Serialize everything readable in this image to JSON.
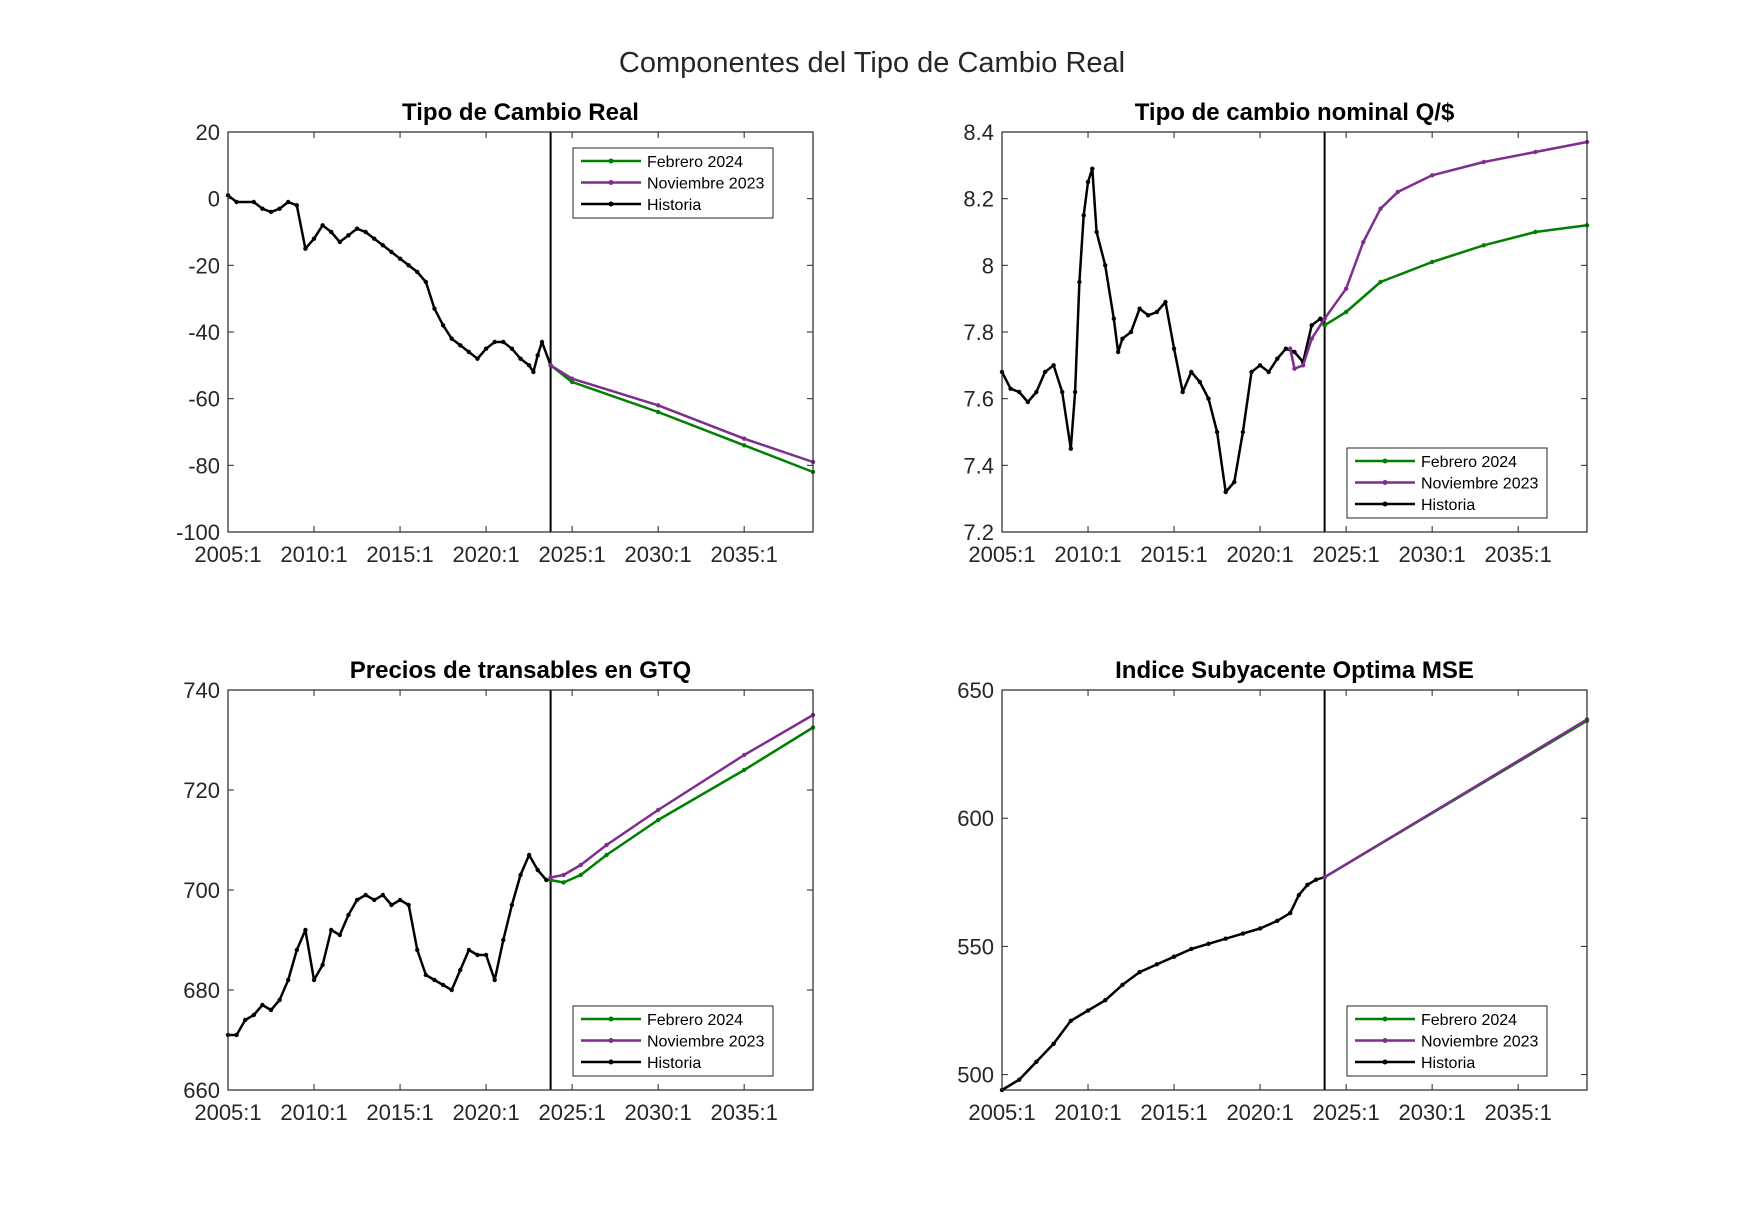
{
  "figure": {
    "title": "Componentes del Tipo de Cambio Real"
  },
  "colors": {
    "Febrero 2024": "#008000",
    "Noviembre 2023": "#7E2F8E",
    "Historia": "#000000",
    "axis": "#262626",
    "vline": "#000000"
  },
  "chart_data": [
    {
      "type": "line",
      "title": "Tipo de Cambio Real",
      "x_unit": "year (quarterly, 2005:1 = 2005.0)",
      "xlim": [
        2005.0,
        2039.0
      ],
      "ylim": [
        -100,
        20
      ],
      "xticks": [
        2005,
        2010,
        2015,
        2020,
        2025,
        2030,
        2035
      ],
      "xtick_labels": [
        "2005:1",
        "2010:1",
        "2015:1",
        "2020:1",
        "2025:1",
        "2030:1",
        "2035:1"
      ],
      "yticks": [
        -100,
        -80,
        -60,
        -40,
        -20,
        0,
        20
      ],
      "ytick_labels": [
        "-100",
        "-80",
        "-60",
        "-40",
        "-20",
        "0",
        "20"
      ],
      "forecast_line_x": 2023.75,
      "legend_position": "top-right",
      "series": [
        {
          "name": "Febrero 2024",
          "points": [
            [
              2023.75,
              -50
            ],
            [
              2025,
              -55
            ],
            [
              2030,
              -64
            ],
            [
              2035,
              -74
            ],
            [
              2039,
              -82
            ]
          ]
        },
        {
          "name": "Noviembre 2023",
          "points": [
            [
              2023.75,
              -50
            ],
            [
              2025,
              -54
            ],
            [
              2030,
              -62
            ],
            [
              2035,
              -72
            ],
            [
              2039,
              -79
            ]
          ]
        },
        {
          "name": "Historia",
          "points": [
            [
              2005.0,
              1
            ],
            [
              2005.5,
              -1
            ],
            [
              2006.5,
              -1
            ],
            [
              2007.0,
              -3
            ],
            [
              2007.5,
              -4
            ],
            [
              2008.0,
              -3
            ],
            [
              2008.5,
              -1
            ],
            [
              2009.0,
              -2
            ],
            [
              2009.5,
              -15
            ],
            [
              2010.0,
              -12
            ],
            [
              2010.5,
              -8
            ],
            [
              2011.0,
              -10
            ],
            [
              2011.5,
              -13
            ],
            [
              2012.0,
              -11
            ],
            [
              2012.5,
              -9
            ],
            [
              2013.0,
              -10
            ],
            [
              2013.5,
              -12
            ],
            [
              2014.0,
              -14
            ],
            [
              2014.5,
              -16
            ],
            [
              2015.0,
              -18
            ],
            [
              2015.5,
              -20
            ],
            [
              2016.0,
              -22
            ],
            [
              2016.5,
              -25
            ],
            [
              2017.0,
              -33
            ],
            [
              2017.5,
              -38
            ],
            [
              2018.0,
              -42
            ],
            [
              2018.5,
              -44
            ],
            [
              2019.0,
              -46
            ],
            [
              2019.5,
              -48
            ],
            [
              2020.0,
              -45
            ],
            [
              2020.5,
              -43
            ],
            [
              2021.0,
              -43
            ],
            [
              2021.5,
              -45
            ],
            [
              2022.0,
              -48
            ],
            [
              2022.5,
              -50
            ],
            [
              2022.75,
              -52
            ],
            [
              2023.0,
              -47
            ],
            [
              2023.25,
              -43
            ],
            [
              2023.75,
              -50
            ]
          ]
        }
      ]
    },
    {
      "type": "line",
      "title": "Tipo de cambio nominal Q/$",
      "x_unit": "year (quarterly, 2005:1 = 2005.0)",
      "xlim": [
        2005.0,
        2039.0
      ],
      "ylim": [
        7.2,
        8.4
      ],
      "xticks": [
        2005,
        2010,
        2015,
        2020,
        2025,
        2030,
        2035
      ],
      "xtick_labels": [
        "2005:1",
        "2010:1",
        "2015:1",
        "2020:1",
        "2025:1",
        "2030:1",
        "2035:1"
      ],
      "yticks": [
        7.2,
        7.4,
        7.6,
        7.8,
        8.0,
        8.2,
        8.4
      ],
      "ytick_labels": [
        "7.2",
        "7.4",
        "7.6",
        "7.8",
        "8",
        "8.2",
        "8.4"
      ],
      "forecast_line_x": 2023.75,
      "legend_position": "bottom-right",
      "series": [
        {
          "name": "Febrero 2024",
          "points": [
            [
              2023.75,
              7.82
            ],
            [
              2025,
              7.86
            ],
            [
              2027,
              7.95
            ],
            [
              2030,
              8.01
            ],
            [
              2033,
              8.06
            ],
            [
              2036,
              8.1
            ],
            [
              2039,
              8.12
            ]
          ]
        },
        {
          "name": "Noviembre 2023",
          "points": [
            [
              2021.75,
              7.75
            ],
            [
              2022.0,
              7.69
            ],
            [
              2022.5,
              7.7
            ],
            [
              2023.0,
              7.78
            ],
            [
              2023.75,
              7.84
            ],
            [
              2025,
              7.93
            ],
            [
              2026,
              8.07
            ],
            [
              2027,
              8.17
            ],
            [
              2028,
              8.22
            ],
            [
              2030,
              8.27
            ],
            [
              2033,
              8.31
            ],
            [
              2036,
              8.34
            ],
            [
              2039,
              8.37
            ]
          ]
        },
        {
          "name": "Historia",
          "points": [
            [
              2005.0,
              7.68
            ],
            [
              2005.5,
              7.63
            ],
            [
              2006.0,
              7.62
            ],
            [
              2006.5,
              7.59
            ],
            [
              2007.0,
              7.62
            ],
            [
              2007.5,
              7.68
            ],
            [
              2008.0,
              7.7
            ],
            [
              2008.5,
              7.62
            ],
            [
              2009.0,
              7.45
            ],
            [
              2009.25,
              7.62
            ],
            [
              2009.5,
              7.95
            ],
            [
              2009.75,
              8.15
            ],
            [
              2010.0,
              8.25
            ],
            [
              2010.25,
              8.29
            ],
            [
              2010.5,
              8.1
            ],
            [
              2011.0,
              8.0
            ],
            [
              2011.5,
              7.84
            ],
            [
              2011.75,
              7.74
            ],
            [
              2012.0,
              7.78
            ],
            [
              2012.5,
              7.8
            ],
            [
              2013.0,
              7.87
            ],
            [
              2013.5,
              7.85
            ],
            [
              2014.0,
              7.86
            ],
            [
              2014.5,
              7.89
            ],
            [
              2015.0,
              7.75
            ],
            [
              2015.5,
              7.62
            ],
            [
              2016.0,
              7.68
            ],
            [
              2016.5,
              7.65
            ],
            [
              2017.0,
              7.6
            ],
            [
              2017.5,
              7.5
            ],
            [
              2018.0,
              7.32
            ],
            [
              2018.5,
              7.35
            ],
            [
              2019.0,
              7.5
            ],
            [
              2019.5,
              7.68
            ],
            [
              2020.0,
              7.7
            ],
            [
              2020.5,
              7.68
            ],
            [
              2021.0,
              7.72
            ],
            [
              2021.5,
              7.75
            ],
            [
              2022.0,
              7.74
            ],
            [
              2022.5,
              7.71
            ],
            [
              2023.0,
              7.82
            ],
            [
              2023.5,
              7.84
            ],
            [
              2023.75,
              7.82
            ]
          ]
        }
      ]
    },
    {
      "type": "line",
      "title": "Precios de transables en GTQ",
      "x_unit": "year (quarterly, 2005:1 = 2005.0)",
      "xlim": [
        2005.0,
        2039.0
      ],
      "ylim": [
        660,
        740
      ],
      "xticks": [
        2005,
        2010,
        2015,
        2020,
        2025,
        2030,
        2035
      ],
      "xtick_labels": [
        "2005:1",
        "2010:1",
        "2015:1",
        "2020:1",
        "2025:1",
        "2030:1",
        "2035:1"
      ],
      "yticks": [
        660,
        680,
        700,
        720,
        740
      ],
      "ytick_labels": [
        "660",
        "680",
        "700",
        "720",
        "740"
      ],
      "forecast_line_x": 2023.75,
      "legend_position": "bottom-right",
      "series": [
        {
          "name": "Febrero 2024",
          "points": [
            [
              2023.75,
              702
            ],
            [
              2024.5,
              701.5
            ],
            [
              2025.5,
              703
            ],
            [
              2027,
              707
            ],
            [
              2030,
              714
            ],
            [
              2035,
              724
            ],
            [
              2039,
              732.5
            ]
          ]
        },
        {
          "name": "Noviembre 2023",
          "points": [
            [
              2023.75,
              702.5
            ],
            [
              2024.5,
              703
            ],
            [
              2025.5,
              705
            ],
            [
              2027,
              709
            ],
            [
              2030,
              716
            ],
            [
              2035,
              727
            ],
            [
              2039,
              735
            ]
          ]
        },
        {
          "name": "Historia",
          "points": [
            [
              2005.0,
              671
            ],
            [
              2005.5,
              671
            ],
            [
              2006.0,
              674
            ],
            [
              2006.5,
              675
            ],
            [
              2007.0,
              677
            ],
            [
              2007.5,
              676
            ],
            [
              2008.0,
              678
            ],
            [
              2008.5,
              682
            ],
            [
              2009.0,
              688
            ],
            [
              2009.5,
              692
            ],
            [
              2010.0,
              682
            ],
            [
              2010.5,
              685
            ],
            [
              2011.0,
              692
            ],
            [
              2011.5,
              691
            ],
            [
              2012.0,
              695
            ],
            [
              2012.5,
              698
            ],
            [
              2013.0,
              699
            ],
            [
              2013.5,
              698
            ],
            [
              2014.0,
              699
            ],
            [
              2014.5,
              697
            ],
            [
              2015.0,
              698
            ],
            [
              2015.5,
              697
            ],
            [
              2016.0,
              688
            ],
            [
              2016.5,
              683
            ],
            [
              2017.0,
              682
            ],
            [
              2017.5,
              681
            ],
            [
              2018.0,
              680
            ],
            [
              2018.5,
              684
            ],
            [
              2019.0,
              688
            ],
            [
              2019.5,
              687
            ],
            [
              2020.0,
              687
            ],
            [
              2020.5,
              682
            ],
            [
              2021.0,
              690
            ],
            [
              2021.5,
              697
            ],
            [
              2022.0,
              703
            ],
            [
              2022.5,
              707
            ],
            [
              2023.0,
              704
            ],
            [
              2023.5,
              702
            ],
            [
              2023.75,
              702
            ]
          ]
        }
      ]
    },
    {
      "type": "line",
      "title": "Indice Subyacente Optima MSE",
      "x_unit": "year (quarterly, 2005:1 = 2005.0)",
      "xlim": [
        2005.0,
        2039.0
      ],
      "ylim": [
        494,
        650
      ],
      "xticks": [
        2005,
        2010,
        2015,
        2020,
        2025,
        2030,
        2035
      ],
      "xtick_labels": [
        "2005:1",
        "2010:1",
        "2015:1",
        "2020:1",
        "2025:1",
        "2030:1",
        "2035:1"
      ],
      "yticks": [
        500,
        550,
        600,
        650
      ],
      "ytick_labels": [
        "500",
        "550",
        "600",
        "650"
      ],
      "forecast_line_x": 2023.75,
      "legend_position": "bottom-right",
      "series": [
        {
          "name": "Febrero 2024",
          "points": [
            [
              2023.75,
              577
            ],
            [
              2039,
              638
            ]
          ]
        },
        {
          "name": "Noviembre 2023",
          "points": [
            [
              2023.75,
              577
            ],
            [
              2039,
              638.5
            ]
          ]
        },
        {
          "name": "Historia",
          "points": [
            [
              2005.0,
              494
            ],
            [
              2006.0,
              498
            ],
            [
              2007.0,
              505
            ],
            [
              2008.0,
              512
            ],
            [
              2009.0,
              521
            ],
            [
              2010.0,
              525
            ],
            [
              2011.0,
              529
            ],
            [
              2012.0,
              535
            ],
            [
              2013.0,
              540
            ],
            [
              2014.0,
              543
            ],
            [
              2015.0,
              546
            ],
            [
              2016.0,
              549
            ],
            [
              2017.0,
              551
            ],
            [
              2018.0,
              553
            ],
            [
              2019.0,
              555
            ],
            [
              2020.0,
              557
            ],
            [
              2021.0,
              560
            ],
            [
              2021.75,
              563
            ],
            [
              2022.25,
              570
            ],
            [
              2022.75,
              574
            ],
            [
              2023.25,
              576
            ],
            [
              2023.75,
              577
            ]
          ]
        }
      ]
    }
  ]
}
